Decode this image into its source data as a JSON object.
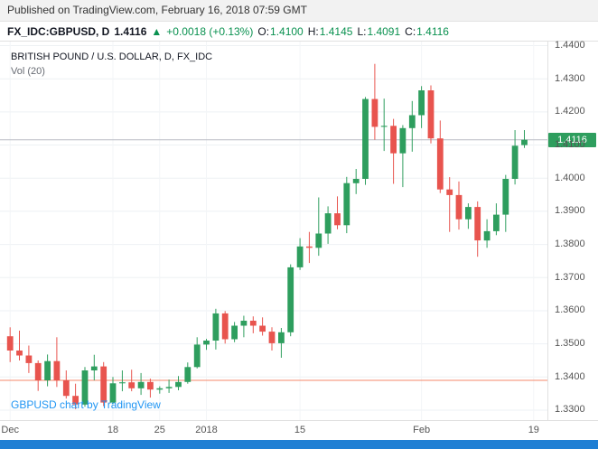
{
  "header": {
    "published": "Published on TradingView.com, February 16, 2018 07:59 GMT",
    "symbol": "FX_IDC:GBPUSD, D",
    "last_price": "1.4116",
    "direction_arrow": "▲",
    "change": "+0.0018 (+0.13%)",
    "ohlc": {
      "o_label": "O:",
      "o": "1.4100",
      "h_label": "H:",
      "h": "1.4145",
      "l_label": "L:",
      "l": "1.4091",
      "c_label": "C:",
      "c": "1.4116"
    }
  },
  "legend": {
    "title": "BRITISH POUND / U.S. DOLLAR, D, FX_IDC",
    "indicator": "Vol (20)"
  },
  "watermark": "GBPUSD chart by TradingView",
  "price_label": "1.4116",
  "colors": {
    "up": "#2e9e5e",
    "down": "#e8544e",
    "header_positive": "#0a9150",
    "grid": "#eef1f4",
    "grid_vertical": "#f3f5f7",
    "price_line": "#b8bcc4",
    "level_line": "#f5886b",
    "axis_text": "#555555",
    "price_tag_bg": "#2e9e5e",
    "price_tag_text": "#ffffff",
    "link_blue": "#2196f3",
    "bottom_bar": "#1f7fd4",
    "published_bg": "#f2f2f2"
  },
  "chart_data": {
    "type": "candlestick",
    "title": "BRITISH POUND / U.S. DOLLAR, D, FX_IDC",
    "symbol": "FX_IDC:GBPUSD",
    "interval": "D",
    "y_axis": {
      "ticks": [
        1.44,
        1.43,
        1.42,
        1.41,
        1.4,
        1.39,
        1.38,
        1.37,
        1.36,
        1.35,
        1.34,
        1.33
      ],
      "render_min": 1.327,
      "render_max": 1.4415
    },
    "x_ticks": [
      {
        "label": "Dec",
        "index": 0
      },
      {
        "label": "18",
        "index": 11
      },
      {
        "label": "25",
        "index": 16
      },
      {
        "label": "2018",
        "index": 21
      },
      {
        "label": "15",
        "index": 31
      },
      {
        "label": "Feb",
        "index": 44
      },
      {
        "label": "19",
        "index": 56
      }
    ],
    "current_price": 1.4116,
    "level_line": 1.339,
    "candles": [
      {
        "date": "Dec 1",
        "o": 1.3523,
        "h": 1.355,
        "l": 1.3445,
        "c": 1.348
      },
      {
        "date": "Dec 4",
        "o": 1.348,
        "h": 1.354,
        "l": 1.345,
        "c": 1.3465
      },
      {
        "date": "Dec 5",
        "o": 1.3465,
        "h": 1.3495,
        "l": 1.3412,
        "c": 1.3442
      },
      {
        "date": "Dec 6",
        "o": 1.3442,
        "h": 1.345,
        "l": 1.3358,
        "c": 1.339
      },
      {
        "date": "Dec 7",
        "o": 1.339,
        "h": 1.3468,
        "l": 1.3372,
        "c": 1.3448
      },
      {
        "date": "Dec 8",
        "o": 1.3448,
        "h": 1.352,
        "l": 1.337,
        "c": 1.339
      },
      {
        "date": "Dec 11",
        "o": 1.339,
        "h": 1.342,
        "l": 1.3335,
        "c": 1.3343
      },
      {
        "date": "Dec 12",
        "o": 1.3343,
        "h": 1.338,
        "l": 1.3303,
        "c": 1.3317
      },
      {
        "date": "Dec 13",
        "o": 1.3317,
        "h": 1.343,
        "l": 1.331,
        "c": 1.342
      },
      {
        "date": "Dec 14",
        "o": 1.342,
        "h": 1.3467,
        "l": 1.339,
        "c": 1.3432
      },
      {
        "date": "Dec 15",
        "o": 1.3432,
        "h": 1.3445,
        "l": 1.3312,
        "c": 1.3323
      },
      {
        "date": "Dec 18",
        "o": 1.3323,
        "h": 1.34,
        "l": 1.3318,
        "c": 1.3381
      },
      {
        "date": "Dec 19",
        "o": 1.3381,
        "h": 1.342,
        "l": 1.3357,
        "c": 1.3384
      },
      {
        "date": "Dec 20",
        "o": 1.3384,
        "h": 1.3422,
        "l": 1.3357,
        "c": 1.3366
      },
      {
        "date": "Dec 21",
        "o": 1.3366,
        "h": 1.3412,
        "l": 1.3346,
        "c": 1.3385
      },
      {
        "date": "Dec 22",
        "o": 1.3385,
        "h": 1.3395,
        "l": 1.3338,
        "c": 1.3362
      },
      {
        "date": "Dec 25",
        "o": 1.3362,
        "h": 1.3372,
        "l": 1.335,
        "c": 1.3366
      },
      {
        "date": "Dec 26",
        "o": 1.3366,
        "h": 1.3392,
        "l": 1.3352,
        "c": 1.337
      },
      {
        "date": "Dec 27",
        "o": 1.337,
        "h": 1.3403,
        "l": 1.336,
        "c": 1.3385
      },
      {
        "date": "Dec 28",
        "o": 1.3385,
        "h": 1.3444,
        "l": 1.338,
        "c": 1.343
      },
      {
        "date": "Dec 29",
        "o": 1.343,
        "h": 1.352,
        "l": 1.3426,
        "c": 1.3498
      },
      {
        "date": "Jan 1",
        "o": 1.3498,
        "h": 1.3515,
        "l": 1.3482,
        "c": 1.351
      },
      {
        "date": "Jan 2",
        "o": 1.351,
        "h": 1.3606,
        "l": 1.3483,
        "c": 1.3592
      },
      {
        "date": "Jan 3",
        "o": 1.3592,
        "h": 1.3599,
        "l": 1.3501,
        "c": 1.3514
      },
      {
        "date": "Jan 4",
        "o": 1.3514,
        "h": 1.3566,
        "l": 1.3505,
        "c": 1.3555
      },
      {
        "date": "Jan 5",
        "o": 1.3555,
        "h": 1.3585,
        "l": 1.352,
        "c": 1.357
      },
      {
        "date": "Jan 8",
        "o": 1.357,
        "h": 1.3583,
        "l": 1.3532,
        "c": 1.3555
      },
      {
        "date": "Jan 9",
        "o": 1.3555,
        "h": 1.358,
        "l": 1.3525,
        "c": 1.3537
      },
      {
        "date": "Jan 10",
        "o": 1.3537,
        "h": 1.355,
        "l": 1.348,
        "c": 1.3502
      },
      {
        "date": "Jan 11",
        "o": 1.3502,
        "h": 1.3548,
        "l": 1.3458,
        "c": 1.3535
      },
      {
        "date": "Jan 12",
        "o": 1.3535,
        "h": 1.374,
        "l": 1.3523,
        "c": 1.3731
      },
      {
        "date": "Jan 15",
        "o": 1.3731,
        "h": 1.3819,
        "l": 1.3723,
        "c": 1.3794
      },
      {
        "date": "Jan 16",
        "o": 1.3794,
        "h": 1.3838,
        "l": 1.3744,
        "c": 1.379
      },
      {
        "date": "Jan 17",
        "o": 1.379,
        "h": 1.3942,
        "l": 1.3766,
        "c": 1.3833
      },
      {
        "date": "Jan 18",
        "o": 1.3833,
        "h": 1.3915,
        "l": 1.3802,
        "c": 1.3894
      },
      {
        "date": "Jan 19",
        "o": 1.3894,
        "h": 1.3945,
        "l": 1.3846,
        "c": 1.3858
      },
      {
        "date": "Jan 22",
        "o": 1.3858,
        "h": 1.4004,
        "l": 1.3834,
        "c": 1.3985
      },
      {
        "date": "Jan 23",
        "o": 1.3985,
        "h": 1.4028,
        "l": 1.3952,
        "c": 1.3998
      },
      {
        "date": "Jan 24",
        "o": 1.3998,
        "h": 1.4245,
        "l": 1.398,
        "c": 1.4239
      },
      {
        "date": "Jan 25",
        "o": 1.4239,
        "h": 1.4345,
        "l": 1.4116,
        "c": 1.4155
      },
      {
        "date": "Jan 26",
        "o": 1.4155,
        "h": 1.424,
        "l": 1.4082,
        "c": 1.4158
      },
      {
        "date": "Jan 29",
        "o": 1.4158,
        "h": 1.4179,
        "l": 1.3983,
        "c": 1.4075
      },
      {
        "date": "Jan 30",
        "o": 1.4075,
        "h": 1.416,
        "l": 1.3973,
        "c": 1.4151
      },
      {
        "date": "Jan 31",
        "o": 1.4151,
        "h": 1.4233,
        "l": 1.408,
        "c": 1.419
      },
      {
        "date": "Feb 1",
        "o": 1.419,
        "h": 1.4278,
        "l": 1.4151,
        "c": 1.4265
      },
      {
        "date": "Feb 2",
        "o": 1.4265,
        "h": 1.428,
        "l": 1.4105,
        "c": 1.412
      },
      {
        "date": "Feb 5",
        "o": 1.412,
        "h": 1.4174,
        "l": 1.3955,
        "c": 1.3966
      },
      {
        "date": "Feb 6",
        "o": 1.3966,
        "h": 1.4003,
        "l": 1.3838,
        "c": 1.3949
      },
      {
        "date": "Feb 7",
        "o": 1.3949,
        "h": 1.399,
        "l": 1.3845,
        "c": 1.3876
      },
      {
        "date": "Feb 8",
        "o": 1.3876,
        "h": 1.3924,
        "l": 1.3847,
        "c": 1.3913
      },
      {
        "date": "Feb 9",
        "o": 1.3913,
        "h": 1.393,
        "l": 1.3763,
        "c": 1.3812
      },
      {
        "date": "Feb 12",
        "o": 1.3812,
        "h": 1.3876,
        "l": 1.379,
        "c": 1.384
      },
      {
        "date": "Feb 13",
        "o": 1.384,
        "h": 1.3924,
        "l": 1.3828,
        "c": 1.389
      },
      {
        "date": "Feb 14",
        "o": 1.389,
        "h": 1.401,
        "l": 1.3838,
        "c": 1.3998
      },
      {
        "date": "Feb 15",
        "o": 1.3998,
        "h": 1.4145,
        "l": 1.3981,
        "c": 1.4098
      },
      {
        "date": "Feb 16",
        "o": 1.41,
        "h": 1.4145,
        "l": 1.4091,
        "c": 1.4116
      }
    ]
  }
}
